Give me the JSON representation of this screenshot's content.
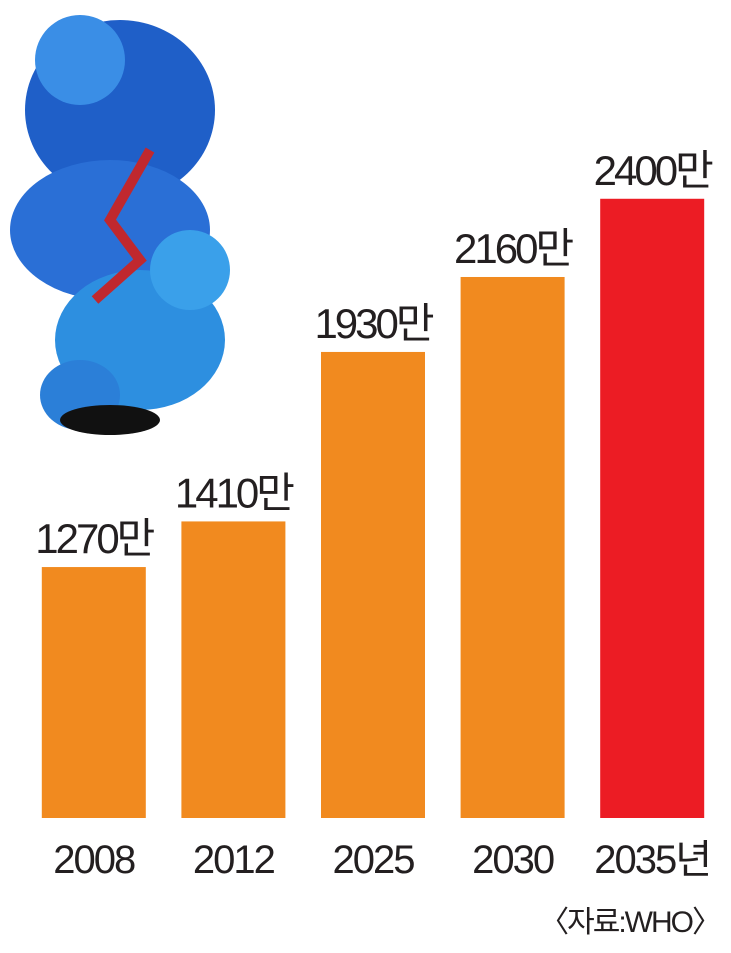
{
  "chart_data": {
    "type": "bar",
    "categories": [
      "2008",
      "2012",
      "2025",
      "2030",
      "2035년"
    ],
    "values": [
      1270,
      1410,
      1930,
      2160,
      2400
    ],
    "value_labels": [
      "1270만",
      "1410만",
      "1930만",
      "2160만",
      "2400만"
    ],
    "colors": [
      "#f18a1f",
      "#f18a1f",
      "#f18a1f",
      "#f18a1f",
      "#ec1c24"
    ],
    "ylim": [
      500,
      2700
    ],
    "source": "〈자료:WHO〉"
  }
}
